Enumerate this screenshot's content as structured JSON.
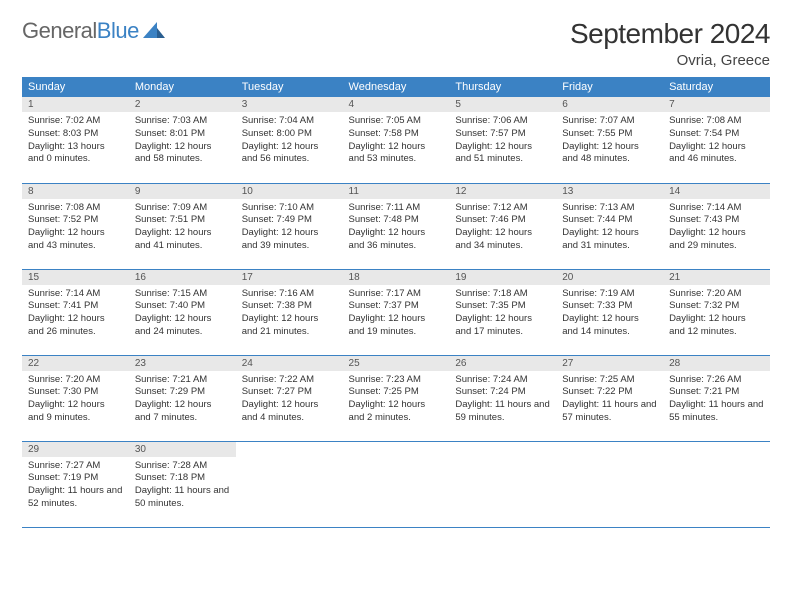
{
  "logo": {
    "text1": "General",
    "text2": "Blue"
  },
  "title": "September 2024",
  "location": "Ovria, Greece",
  "colors": {
    "header_bg": "#3b82c4",
    "header_fg": "#ffffff",
    "daynum_bg": "#e8e8e8",
    "border": "#3b82c4",
    "text": "#333333"
  },
  "weekdays": [
    "Sunday",
    "Monday",
    "Tuesday",
    "Wednesday",
    "Thursday",
    "Friday",
    "Saturday"
  ],
  "weeks": [
    [
      {
        "n": "1",
        "sr": "Sunrise: 7:02 AM",
        "ss": "Sunset: 8:03 PM",
        "dl": "Daylight: 13 hours and 0 minutes."
      },
      {
        "n": "2",
        "sr": "Sunrise: 7:03 AM",
        "ss": "Sunset: 8:01 PM",
        "dl": "Daylight: 12 hours and 58 minutes."
      },
      {
        "n": "3",
        "sr": "Sunrise: 7:04 AM",
        "ss": "Sunset: 8:00 PM",
        "dl": "Daylight: 12 hours and 56 minutes."
      },
      {
        "n": "4",
        "sr": "Sunrise: 7:05 AM",
        "ss": "Sunset: 7:58 PM",
        "dl": "Daylight: 12 hours and 53 minutes."
      },
      {
        "n": "5",
        "sr": "Sunrise: 7:06 AM",
        "ss": "Sunset: 7:57 PM",
        "dl": "Daylight: 12 hours and 51 minutes."
      },
      {
        "n": "6",
        "sr": "Sunrise: 7:07 AM",
        "ss": "Sunset: 7:55 PM",
        "dl": "Daylight: 12 hours and 48 minutes."
      },
      {
        "n": "7",
        "sr": "Sunrise: 7:08 AM",
        "ss": "Sunset: 7:54 PM",
        "dl": "Daylight: 12 hours and 46 minutes."
      }
    ],
    [
      {
        "n": "8",
        "sr": "Sunrise: 7:08 AM",
        "ss": "Sunset: 7:52 PM",
        "dl": "Daylight: 12 hours and 43 minutes."
      },
      {
        "n": "9",
        "sr": "Sunrise: 7:09 AM",
        "ss": "Sunset: 7:51 PM",
        "dl": "Daylight: 12 hours and 41 minutes."
      },
      {
        "n": "10",
        "sr": "Sunrise: 7:10 AM",
        "ss": "Sunset: 7:49 PM",
        "dl": "Daylight: 12 hours and 39 minutes."
      },
      {
        "n": "11",
        "sr": "Sunrise: 7:11 AM",
        "ss": "Sunset: 7:48 PM",
        "dl": "Daylight: 12 hours and 36 minutes."
      },
      {
        "n": "12",
        "sr": "Sunrise: 7:12 AM",
        "ss": "Sunset: 7:46 PM",
        "dl": "Daylight: 12 hours and 34 minutes."
      },
      {
        "n": "13",
        "sr": "Sunrise: 7:13 AM",
        "ss": "Sunset: 7:44 PM",
        "dl": "Daylight: 12 hours and 31 minutes."
      },
      {
        "n": "14",
        "sr": "Sunrise: 7:14 AM",
        "ss": "Sunset: 7:43 PM",
        "dl": "Daylight: 12 hours and 29 minutes."
      }
    ],
    [
      {
        "n": "15",
        "sr": "Sunrise: 7:14 AM",
        "ss": "Sunset: 7:41 PM",
        "dl": "Daylight: 12 hours and 26 minutes."
      },
      {
        "n": "16",
        "sr": "Sunrise: 7:15 AM",
        "ss": "Sunset: 7:40 PM",
        "dl": "Daylight: 12 hours and 24 minutes."
      },
      {
        "n": "17",
        "sr": "Sunrise: 7:16 AM",
        "ss": "Sunset: 7:38 PM",
        "dl": "Daylight: 12 hours and 21 minutes."
      },
      {
        "n": "18",
        "sr": "Sunrise: 7:17 AM",
        "ss": "Sunset: 7:37 PM",
        "dl": "Daylight: 12 hours and 19 minutes."
      },
      {
        "n": "19",
        "sr": "Sunrise: 7:18 AM",
        "ss": "Sunset: 7:35 PM",
        "dl": "Daylight: 12 hours and 17 minutes."
      },
      {
        "n": "20",
        "sr": "Sunrise: 7:19 AM",
        "ss": "Sunset: 7:33 PM",
        "dl": "Daylight: 12 hours and 14 minutes."
      },
      {
        "n": "21",
        "sr": "Sunrise: 7:20 AM",
        "ss": "Sunset: 7:32 PM",
        "dl": "Daylight: 12 hours and 12 minutes."
      }
    ],
    [
      {
        "n": "22",
        "sr": "Sunrise: 7:20 AM",
        "ss": "Sunset: 7:30 PM",
        "dl": "Daylight: 12 hours and 9 minutes."
      },
      {
        "n": "23",
        "sr": "Sunrise: 7:21 AM",
        "ss": "Sunset: 7:29 PM",
        "dl": "Daylight: 12 hours and 7 minutes."
      },
      {
        "n": "24",
        "sr": "Sunrise: 7:22 AM",
        "ss": "Sunset: 7:27 PM",
        "dl": "Daylight: 12 hours and 4 minutes."
      },
      {
        "n": "25",
        "sr": "Sunrise: 7:23 AM",
        "ss": "Sunset: 7:25 PM",
        "dl": "Daylight: 12 hours and 2 minutes."
      },
      {
        "n": "26",
        "sr": "Sunrise: 7:24 AM",
        "ss": "Sunset: 7:24 PM",
        "dl": "Daylight: 11 hours and 59 minutes."
      },
      {
        "n": "27",
        "sr": "Sunrise: 7:25 AM",
        "ss": "Sunset: 7:22 PM",
        "dl": "Daylight: 11 hours and 57 minutes."
      },
      {
        "n": "28",
        "sr": "Sunrise: 7:26 AM",
        "ss": "Sunset: 7:21 PM",
        "dl": "Daylight: 11 hours and 55 minutes."
      }
    ],
    [
      {
        "n": "29",
        "sr": "Sunrise: 7:27 AM",
        "ss": "Sunset: 7:19 PM",
        "dl": "Daylight: 11 hours and 52 minutes."
      },
      {
        "n": "30",
        "sr": "Sunrise: 7:28 AM",
        "ss": "Sunset: 7:18 PM",
        "dl": "Daylight: 11 hours and 50 minutes."
      },
      {
        "empty": true
      },
      {
        "empty": true
      },
      {
        "empty": true
      },
      {
        "empty": true
      },
      {
        "empty": true
      }
    ]
  ]
}
